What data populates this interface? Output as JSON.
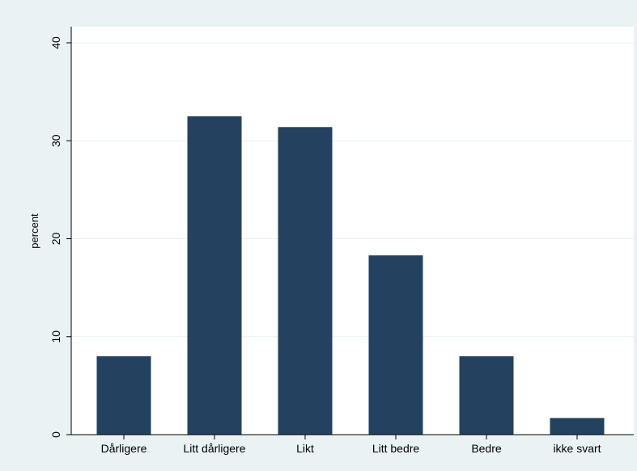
{
  "chart_data": {
    "type": "bar",
    "categories": [
      "Dårligere",
      "Litt dårligere",
      "Likt",
      "Litt bedre",
      "Bedre",
      "ikke svart"
    ],
    "values": [
      8,
      32.5,
      31.4,
      18.3,
      8,
      1.7
    ],
    "title": "",
    "xlabel": "",
    "ylabel": "percent",
    "ylim": [
      0,
      40
    ],
    "yticks": [
      0,
      10,
      20,
      30,
      40
    ],
    "grid": true,
    "legend": "none",
    "bar_color": "#24415f",
    "background_color": "#eaf2f3",
    "plot_background_color": "#ffffff",
    "grid_color": "#eaf2f3"
  }
}
